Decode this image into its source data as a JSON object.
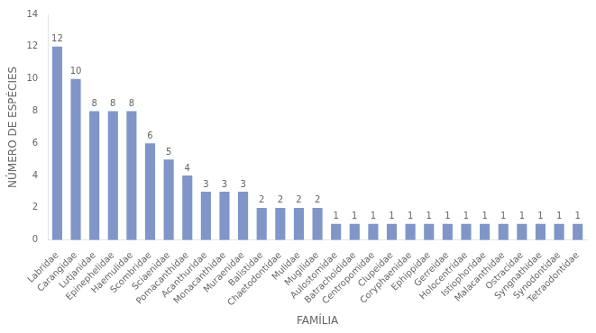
{
  "chart_data": {
    "type": "bar",
    "categories": [
      "Labridae",
      "Carangidae",
      "Lutjanidae",
      "Epinephelidae",
      "Haemulidae",
      "Scombridae",
      "Sciaenidae",
      "Pomacanthidae",
      "Acanthuridae",
      "Monacanthidae",
      "Muraenidae",
      "Balistidae",
      "Chaetodontidae",
      "Mulidae",
      "Mugilidae",
      "Aulostomidae",
      "Batrachoididae",
      "Centropomidae",
      "Clupeidae",
      "Coryphaenidae",
      "Ephippidae",
      "Gerreidae",
      "Holocentridae",
      "Istiophoridae",
      "Malacanthidae",
      "Ostracidae",
      "Syngnathidae",
      "Synodontidae",
      "Tetraodontidae"
    ],
    "values": [
      12,
      10,
      8,
      8,
      8,
      6,
      5,
      4,
      3,
      3,
      3,
      2,
      2,
      2,
      2,
      1,
      1,
      1,
      1,
      1,
      1,
      1,
      1,
      1,
      1,
      1,
      1,
      1,
      1
    ],
    "color": "#8096c8",
    "xlabel": "FAMÍLIA",
    "ylabel": "NÚMERO DE ESPÉCIES",
    "ylim": [
      0,
      14
    ],
    "yticks": [
      0,
      2,
      4,
      6,
      8,
      10,
      12,
      14
    ],
    "grid": false,
    "data_labels": true
  }
}
